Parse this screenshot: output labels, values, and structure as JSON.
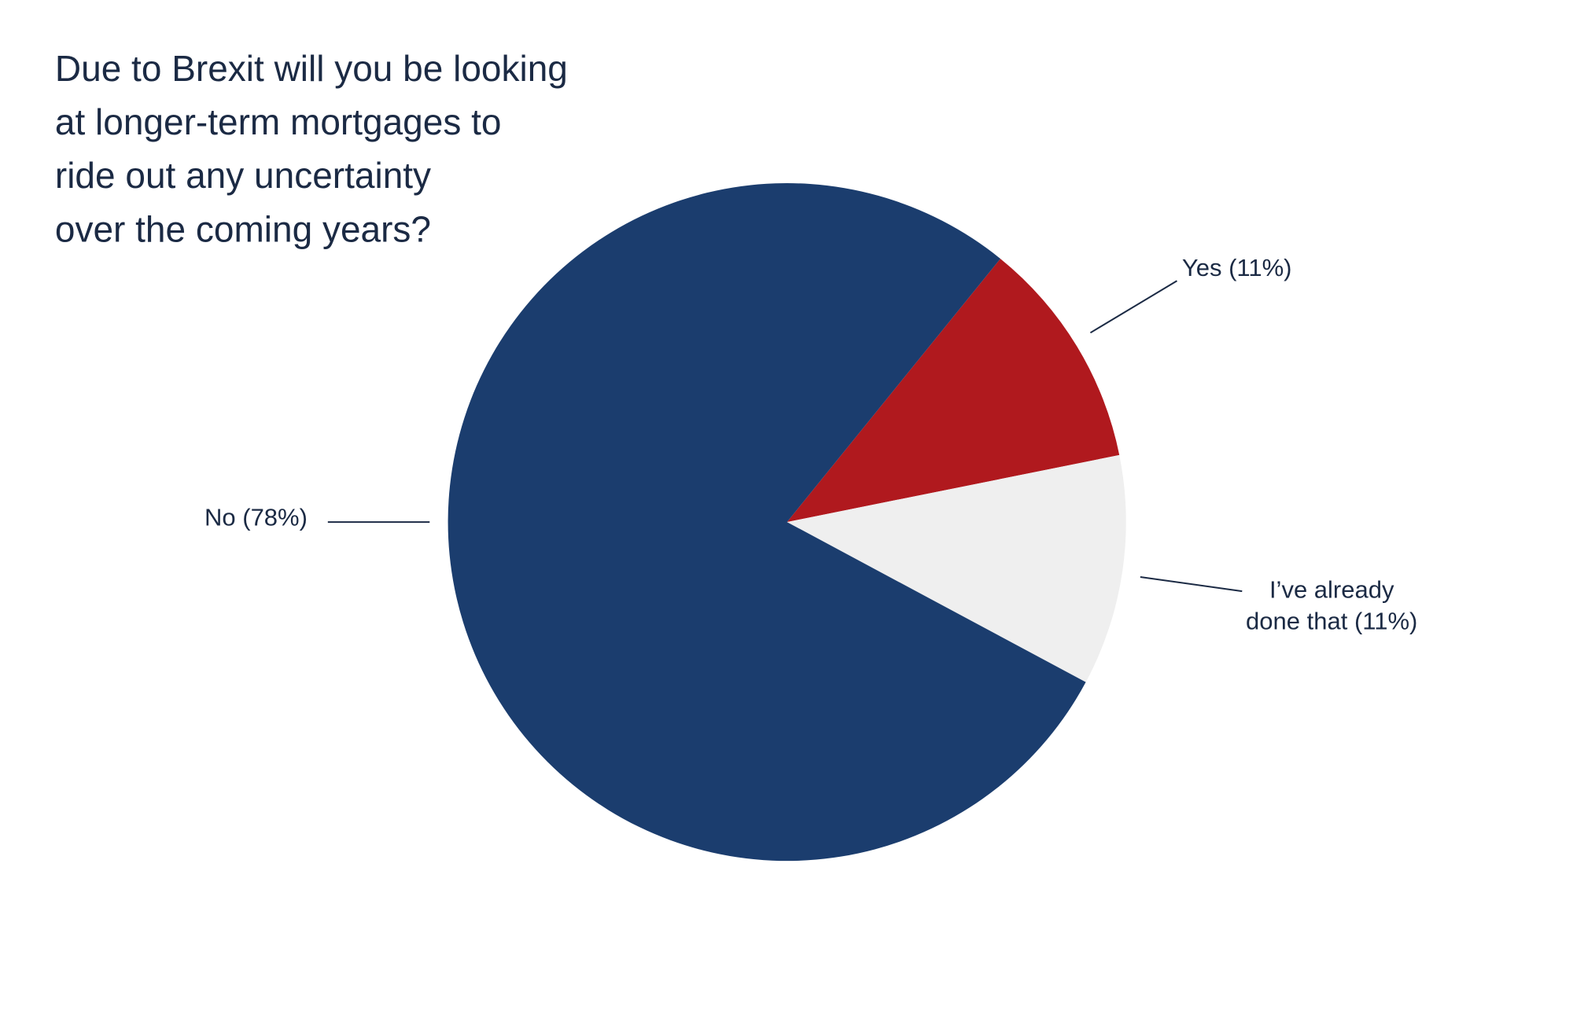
{
  "chart_data": {
    "type": "pie",
    "title": [
      "Due to Brexit will you be looking",
      "at longer-term mortgages to",
      "ride out any uncertainty",
      "over the coming years?"
    ],
    "values": [
      11,
      11,
      78
    ],
    "value_labels": [
      [
        "Yes (11%)"
      ],
      [
        "I’ve already",
        "done that (11%)"
      ],
      [
        "No (78%)"
      ]
    ],
    "colors": [
      "#b0191e",
      "#efefef",
      "#1b3d6e"
    ]
  }
}
